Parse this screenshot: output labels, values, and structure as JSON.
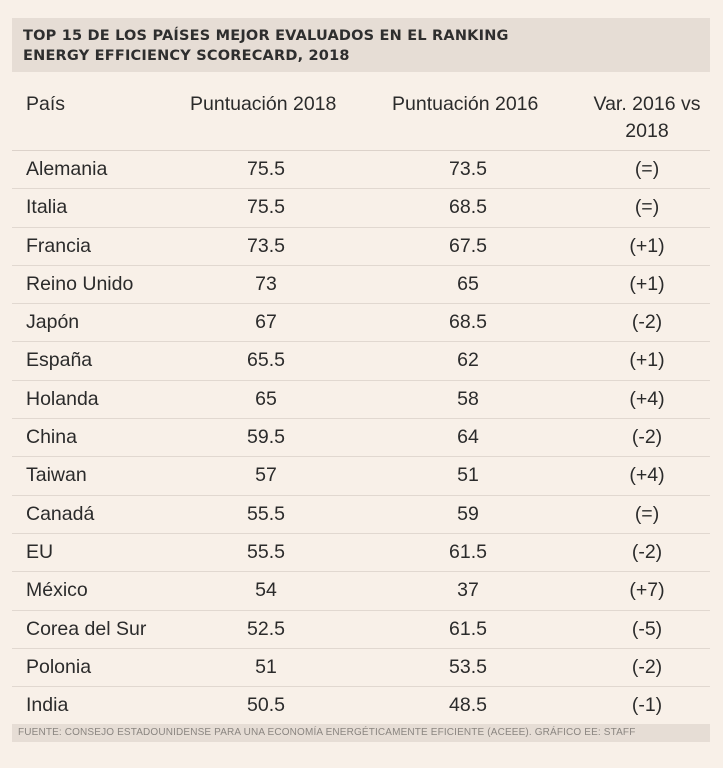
{
  "title": {
    "line1": "TOP 15 DE LOS PAÍSES MEJOR EVALUADOS EN EL RANKING",
    "line2": "ENERGY EFFICIENCY SCORECARD, 2018"
  },
  "table": {
    "headers": {
      "country": "País",
      "score_2018": "Puntuación 2018",
      "score_2016": "Puntuación 2016",
      "variation_line1": "Var. 2016 vs",
      "variation_line2": "2018"
    },
    "rows": [
      {
        "country": "Alemania",
        "score_2018": "75.5",
        "score_2016": "73.5",
        "variation": "(=)"
      },
      {
        "country": "Italia",
        "score_2018": "75.5",
        "score_2016": "68.5",
        "variation": "(=)"
      },
      {
        "country": "Francia",
        "score_2018": "73.5",
        "score_2016": "67.5",
        "variation": "(+1)"
      },
      {
        "country": "Reino Unido",
        "score_2018": "73",
        "score_2016": "65",
        "variation": "(+1)"
      },
      {
        "country": "Japón",
        "score_2018": "67",
        "score_2016": "68.5",
        "variation": "(-2)"
      },
      {
        "country": "España",
        "score_2018": "65.5",
        "score_2016": "62",
        "variation": "(+1)"
      },
      {
        "country": "Holanda",
        "score_2018": "65",
        "score_2016": "58",
        "variation": "(+4)"
      },
      {
        "country": "China",
        "score_2018": "59.5",
        "score_2016": "64",
        "variation": "(-2)"
      },
      {
        "country": "Taiwan",
        "score_2018": "57",
        "score_2016": "51",
        "variation": "(+4)"
      },
      {
        "country": "Canadá",
        "score_2018": "55.5",
        "score_2016": "59",
        "variation": "(=)"
      },
      {
        "country": "EU",
        "score_2018": "55.5",
        "score_2016": "61.5",
        "variation": "(-2)"
      },
      {
        "country": "México",
        "score_2018": "54",
        "score_2016": "37",
        "variation": "(+7)"
      },
      {
        "country": "Corea del Sur",
        "score_2018": "52.5",
        "score_2016": "61.5",
        "variation": "(-5)"
      },
      {
        "country": "Polonia",
        "score_2018": "51",
        "score_2016": "53.5",
        "variation": "(-2)"
      },
      {
        "country": "India",
        "score_2018": "50.5",
        "score_2016": "48.5",
        "variation": "(-1)"
      }
    ]
  },
  "footer": {
    "source": "FUENTE: CONSEJO ESTADOUNIDENSE PARA UNA ECONOMÍA ENERGÉTICAMENTE EFICIENTE (ACEEE).  GRÁFICO EE: STAFF"
  }
}
